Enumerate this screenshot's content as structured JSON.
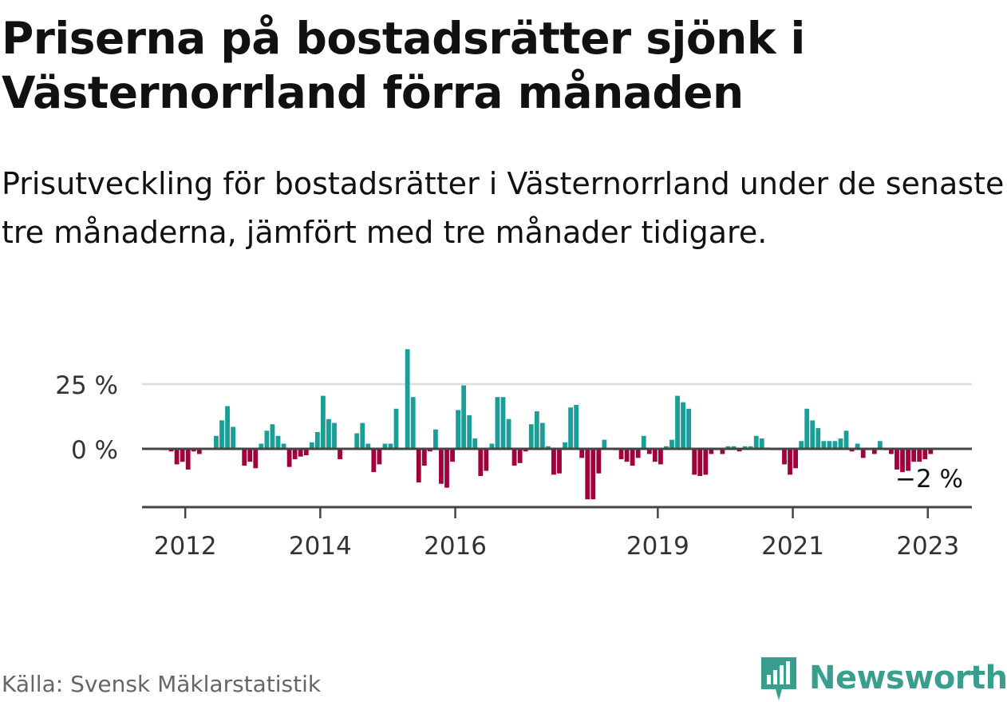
{
  "header": {
    "title": "Priserna på bostadsrätter sjönk i Västernorrland förra månaden",
    "subtitle": "Prisutveckling för bostadsrätter i Västernorrland under de senaste tre månaderna, jämfört med tre månader tidigare."
  },
  "footer": {
    "source": "Källa: Svensk Mäklarstatistik",
    "brand": "Newsworthy",
    "logo_icon": "newsworthy-logo-icon"
  },
  "chart_data": {
    "type": "bar",
    "x_start": "2011-09",
    "x_unit": "month",
    "values": [
      -0.5,
      -1,
      -6,
      -5,
      -8,
      -1,
      -2,
      0.3,
      0,
      5,
      11,
      16.5,
      8.5,
      0.5,
      -6.5,
      -5,
      -7.5,
      2,
      7,
      9.5,
      5,
      2,
      -7,
      -4,
      -3,
      -2.5,
      2.5,
      6.5,
      20.5,
      11.5,
      10,
      -4,
      0.3,
      0,
      6,
      10,
      2,
      -9,
      -6,
      2,
      2,
      15.5,
      0.3,
      38.5,
      20,
      -13,
      -6.5,
      -1,
      7.5,
      -13.5,
      -15,
      -5,
      15,
      24.5,
      13,
      4,
      -10.5,
      -8.5,
      2,
      20,
      20,
      11.5,
      -6.5,
      -5.5,
      -1,
      9.5,
      14.5,
      10,
      1,
      -10,
      -9.5,
      2.5,
      16,
      17,
      -3.5,
      -19.5,
      -19.5,
      -9.5,
      3.5,
      0,
      -0.5,
      -4,
      -5,
      -6.5,
      -3.5,
      5,
      -2,
      -5,
      -6,
      1,
      3.5,
      20.5,
      18,
      15.5,
      -10,
      -10.5,
      -10,
      -2,
      -0.5,
      -2,
      1,
      1,
      -1,
      1,
      1,
      5,
      4,
      0.5,
      -0.5,
      -0.5,
      -6,
      -10,
      -7.5,
      3,
      15.5,
      11,
      8,
      3,
      3,
      3,
      4,
      7,
      -1,
      2,
      -3.5,
      -0.5,
      -2,
      3,
      -0.5,
      -2,
      -8,
      -9,
      -8.5,
      -5,
      -5,
      -4,
      -2
    ],
    "yticks": [
      0,
      25
    ],
    "ytick_labels": [
      "0 %",
      "25 %"
    ],
    "ylim": [
      -22,
      40
    ],
    "xticks": [
      {
        "date": "2012-01",
        "label": "2012"
      },
      {
        "date": "2014-01",
        "label": "2014"
      },
      {
        "date": "2016-01",
        "label": "2016"
      },
      {
        "date": "2019-01",
        "label": "2019"
      },
      {
        "date": "2021-01",
        "label": "2021"
      },
      {
        "date": "2023-01",
        "label": "2023"
      }
    ],
    "annotation": {
      "label": "−2 %"
    },
    "colors": {
      "positive": "#1a9e98",
      "negative": "#a0003c",
      "zero_line": "#444444",
      "grid": "#dddddd"
    },
    "grid": true,
    "legend": "none"
  }
}
